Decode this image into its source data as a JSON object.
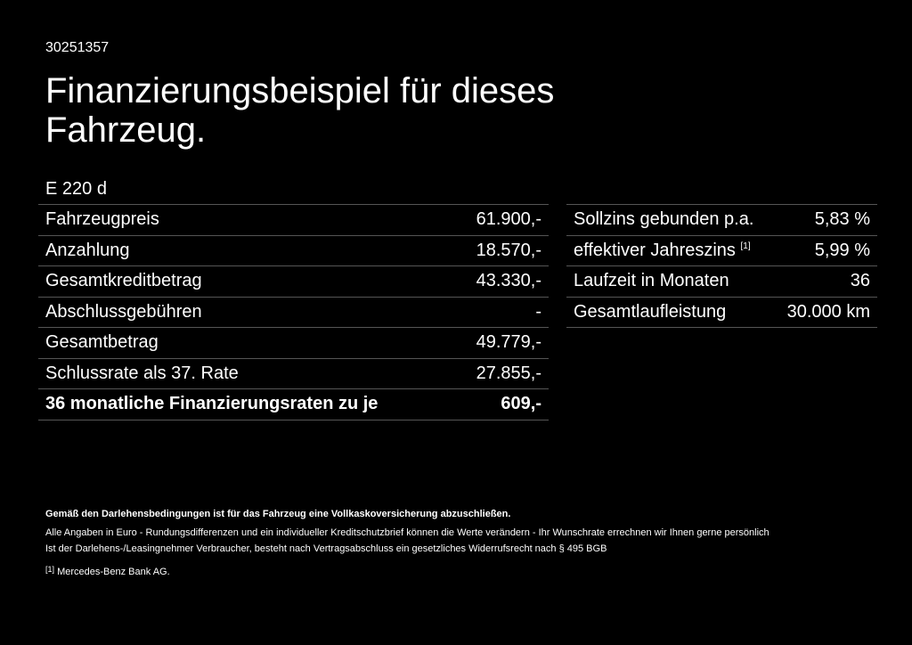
{
  "id": "30251357",
  "title": "Finanzierungsbeispiel für dieses Fahrzeug.",
  "model": "E 220 d",
  "left_rows": [
    {
      "label": "Fahrzeugpreis",
      "value": "61.900,-"
    },
    {
      "label": "Anzahlung",
      "value": "18.570,-"
    },
    {
      "label": "Gesamtkreditbetrag",
      "value": "43.330,-"
    },
    {
      "label": "Abschlussgebühren",
      "value": "-"
    },
    {
      "label": "Gesamtbetrag",
      "value": "49.779,-"
    },
    {
      "label": "Schlussrate als 37. Rate",
      "value": "27.855,-"
    },
    {
      "label": "36 monatliche Finanzierungsraten zu je",
      "value": "609,-"
    }
  ],
  "right_rows": [
    {
      "label": "Sollzins gebunden p.a.",
      "value": "5,83 %"
    },
    {
      "label": "effektiver Jahreszins",
      "sup": "[1]",
      "value": "5,99 %"
    },
    {
      "label": "Laufzeit in Monaten",
      "value": "36"
    },
    {
      "label": "Gesamtlaufleistung",
      "value": "30.000 km"
    }
  ],
  "footer": {
    "bold": "Gemäß den Darlehensbedingungen ist für das Fahrzeug eine Vollkaskoversicherung abzuschließen.",
    "line1": "Alle Angaben in Euro - Rundungsdifferenzen und ein individueller Kreditschutzbrief können die Werte verändern - Ihr Wunschrate errechnen wir Ihnen gerne persönlich",
    "line2": "Ist der Darlehens-/Leasingnehmer Verbraucher, besteht nach Vertragsabschluss ein gesetzliches Widerrufsrecht nach § 495 BGB",
    "note_marker": "[1]",
    "note": "Mercedes-Benz Bank AG."
  }
}
